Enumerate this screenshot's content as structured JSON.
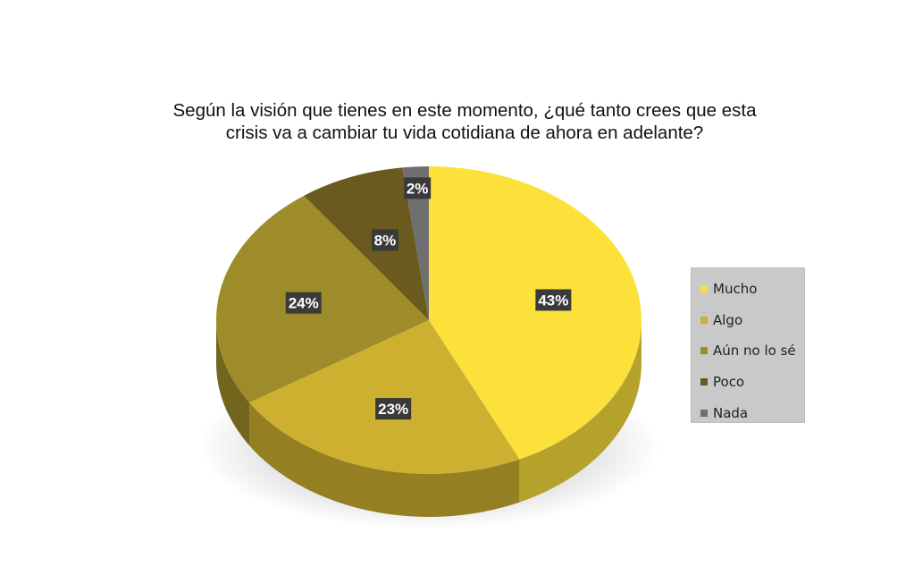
{
  "chart_data": {
    "type": "pie",
    "title_lines": [
      "Según la visión que tienes en este momento, ¿qué tanto crees que esta",
      "crisis va a cambiar tu vida cotidiana de ahora en adelante?"
    ],
    "categories": [
      "Mucho",
      "Algo",
      "Aún no lo sé",
      "Poco",
      "Nada"
    ],
    "values": [
      43,
      23,
      24,
      8,
      2
    ],
    "labels": [
      "43%",
      "23%",
      "24%",
      "8%",
      "2%"
    ],
    "colors": [
      "#FBE13A",
      "#CDB030",
      "#9E8C2A",
      "#6B5A1E",
      "#6F6F6F"
    ],
    "legend_position": "right",
    "style": "3d"
  }
}
